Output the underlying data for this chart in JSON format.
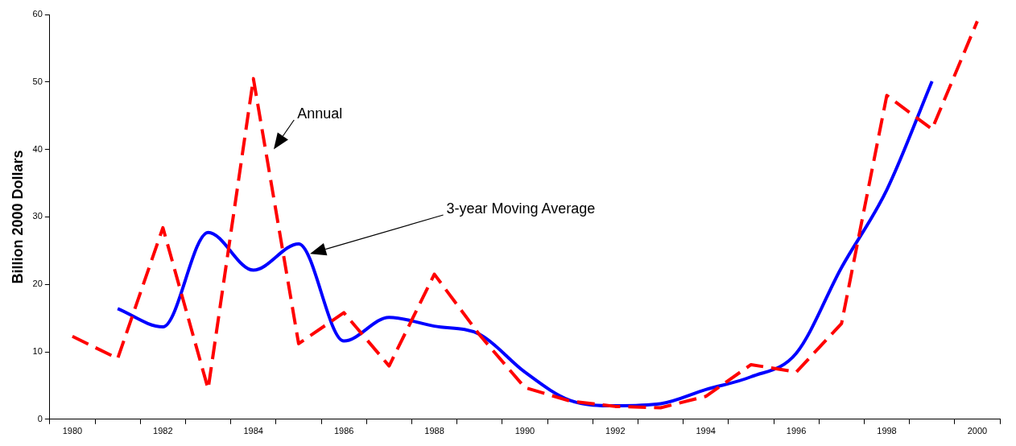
{
  "chart_data": {
    "type": "line",
    "ylabel": "Billion 2000 Dollars",
    "categories": [
      "1980",
      null,
      "1982",
      null,
      "1984",
      null,
      "1986",
      null,
      "1988",
      null,
      "1990",
      null,
      "1992",
      null,
      "1994",
      null,
      "1996",
      null,
      "1998",
      null,
      "2000"
    ],
    "series": [
      {
        "color": "#ff0000",
        "line_style": "dashed",
        "values": [
          12.3,
          9,
          28.4,
          4.5,
          50.5,
          11.2,
          15.8,
          7.9,
          21.5,
          12.5,
          4.7,
          2.7,
          1.9,
          1.7,
          3.4,
          8.1,
          7,
          14.2,
          48,
          43,
          59
        ]
      },
      {
        "color": "#0000ff",
        "line_style": "solid",
        "values": [
          null,
          16.4,
          13.7,
          27.7,
          22.1,
          26,
          11.6,
          15.1,
          13.8,
          12.6,
          7,
          2.8,
          2,
          2.3,
          4.4,
          6.3,
          9.8,
          22.5,
          34,
          50.1,
          null
        ]
      }
    ],
    "ylim": [
      0,
      60
    ],
    "yticks": [
      0,
      10,
      20,
      30,
      40,
      50,
      60
    ],
    "annotations": [
      "Annual",
      "3-year Moving Average"
    ],
    "grid": false,
    "legend": false,
    "marker": "none"
  }
}
